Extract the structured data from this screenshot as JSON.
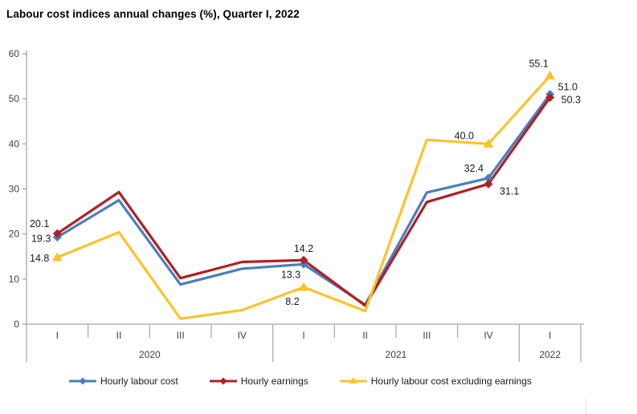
{
  "title": "Labour cost indices annual changes (%), Quarter I, 2022",
  "chart_data": {
    "type": "line",
    "title": "Labour cost indices annual changes (%), Quarter I, 2022",
    "categories": [
      "2020-I",
      "2020-II",
      "2020-III",
      "2020-IV",
      "2021-I",
      "2021-II",
      "2021-III",
      "2021-IV",
      "2022-I"
    ],
    "x_groups": [
      {
        "year": "2020",
        "quarters": [
          "I",
          "II",
          "III",
          "IV"
        ]
      },
      {
        "year": "2021",
        "quarters": [
          "I",
          "II",
          "III",
          "IV"
        ]
      },
      {
        "year": "2022",
        "quarters": [
          "I"
        ]
      }
    ],
    "ylabel": "",
    "xlabel": "",
    "ylim": [
      0,
      60
    ],
    "yticks": [
      0,
      10,
      20,
      30,
      40,
      50,
      60
    ],
    "grid": false,
    "legend_position": "bottom",
    "axis_color": "#a6a6a6",
    "tick_label_color": "#404040",
    "point_label_color": "#1a1a1a",
    "series": [
      {
        "name": "Hourly labour cost",
        "color": "#4a7ebb",
        "marker": "diamond",
        "values": [
          19.3,
          27.5,
          8.8,
          12.3,
          13.3,
          4.3,
          29.2,
          32.4,
          51.0
        ],
        "point_labels": [
          {
            "i": 0,
            "text": "19.3",
            "anchor": "end",
            "dx": -8,
            "dy": 6
          },
          {
            "i": 4,
            "text": "13.3",
            "anchor": "middle",
            "dx": -16,
            "dy": 17
          },
          {
            "i": 7,
            "text": "32.4",
            "anchor": "end",
            "dx": -6,
            "dy": -8
          },
          {
            "i": 8,
            "text": "51.0",
            "anchor": "start",
            "dx": 10,
            "dy": -5
          }
        ]
      },
      {
        "name": "Hourly earnings",
        "color": "#b02024",
        "marker": "diamond",
        "values": [
          20.1,
          29.3,
          10.2,
          13.8,
          14.2,
          4.1,
          27.1,
          31.1,
          50.3
        ],
        "point_labels": [
          {
            "i": 0,
            "text": "20.1",
            "anchor": "end",
            "dx": -10,
            "dy": -8
          },
          {
            "i": 4,
            "text": "14.2",
            "anchor": "middle",
            "dx": 0,
            "dy": -10
          },
          {
            "i": 7,
            "text": "31.1",
            "anchor": "start",
            "dx": 14,
            "dy": 13
          },
          {
            "i": 8,
            "text": "50.3",
            "anchor": "start",
            "dx": 14,
            "dy": 7
          }
        ]
      },
      {
        "name": "Hourly labour cost excluding earnings",
        "color": "#fcc32c",
        "marker": "triangle",
        "values": [
          14.8,
          20.4,
          1.2,
          3.1,
          8.2,
          2.9,
          40.9,
          40.0,
          55.1
        ],
        "point_labels": [
          {
            "i": 0,
            "text": "14.8",
            "anchor": "end",
            "dx": -10,
            "dy": 5
          },
          {
            "i": 4,
            "text": "8.2",
            "anchor": "middle",
            "dx": -14,
            "dy": 22
          },
          {
            "i": 7,
            "text": "40.0",
            "anchor": "end",
            "dx": -18,
            "dy": -6
          },
          {
            "i": 8,
            "text": "55.1",
            "anchor": "middle",
            "dx": -14,
            "dy": -11
          }
        ]
      }
    ]
  },
  "legend": {
    "items": [
      {
        "label": "Hourly labour cost"
      },
      {
        "label": "Hourly earnings"
      },
      {
        "label": "Hourly labour cost excluding earnings"
      }
    ]
  }
}
